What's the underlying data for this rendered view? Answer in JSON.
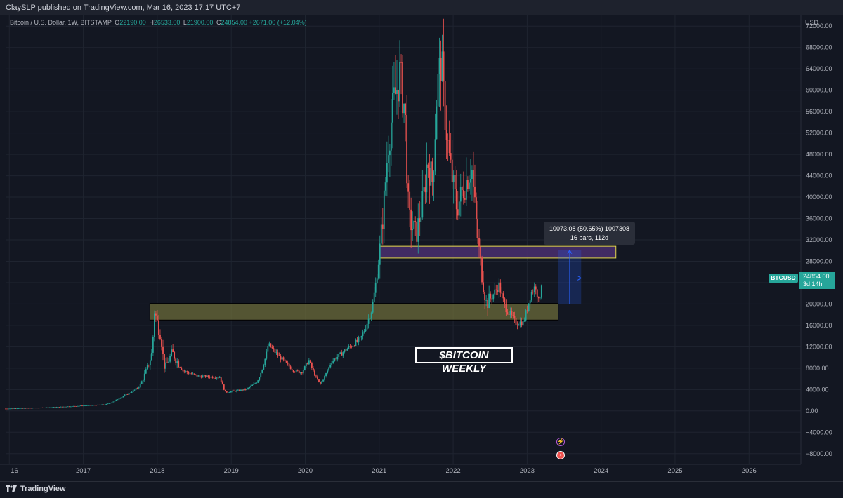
{
  "header": {
    "publish_text": "ClaySLP published on TradingView.com, Mar 16, 2023 17:17 UTC+7"
  },
  "legend": {
    "symbol": "Bitcoin / U.S. Dollar, 1W, BITSTAMP",
    "open_key": "O",
    "open": "22190.00",
    "high_key": "H",
    "high": "26533.00",
    "low_key": "L",
    "low": "21900.00",
    "close_key": "C",
    "close": "24854.00",
    "change": "+2671.00 (+12.04%)"
  },
  "currency_label": "USD",
  "annotation_text": "$BITCOIN WEEKLY",
  "measure": {
    "line1": "10073.08 (50.65%) 1007308",
    "line2": "16 bars, 112d"
  },
  "price_badge": {
    "ticker": "BTCUSD",
    "price": "24854.00",
    "countdown": "3d 14h"
  },
  "footer": {
    "brand": "TradingView"
  },
  "colors": {
    "background": "#131722",
    "up": "#26a69a",
    "down": "#ef5350",
    "grid": "#1f2430",
    "zone_low": "#6b6b3a",
    "zone_high": "#4a2f6e",
    "measure": "#2962ff",
    "axis_text": "#b2b5be"
  },
  "chart_data": {
    "type": "candlestick",
    "symbol": "BTCUSD",
    "interval": "1W",
    "y_ticks": [
      72000,
      68000,
      64000,
      60000,
      56000,
      52000,
      48000,
      44000,
      40000,
      36000,
      32000,
      28000,
      24000,
      20000,
      16000,
      12000,
      8000,
      4000,
      0,
      -4000,
      -8000
    ],
    "y_tick_labels": [
      "72000.00",
      "68000.00",
      "64000.00",
      "60000.00",
      "56000.00",
      "52000.00",
      "48000.00",
      "44000.00",
      "40000.00",
      "36000.00",
      "32000.00",
      "28000.00",
      "24000.00",
      "20000.00",
      "16000.00",
      "12000.00",
      "8000.00",
      "4000.00",
      "0.00",
      "−4000.00",
      "−8000.00"
    ],
    "x_tick_labels": [
      "16",
      "2017",
      "2018",
      "2019",
      "2020",
      "2021",
      "2022",
      "2023",
      "2024",
      "2025",
      "2026"
    ],
    "x_tick_years": [
      2016,
      2017,
      2018,
      2019,
      2020,
      2021,
      2022,
      2023,
      2024,
      2025,
      2026
    ],
    "ylim": [
      -10000,
      74000
    ],
    "xlim": [
      2015.95,
      2026.7
    ],
    "price_path": [
      [
        2015.95,
        430
      ],
      [
        2016.5,
        650
      ],
      [
        2016.95,
        950
      ],
      [
        2017.3,
        1200
      ],
      [
        2017.5,
        2500
      ],
      [
        2017.75,
        4500
      ],
      [
        2017.85,
        7500
      ],
      [
        2017.93,
        11000
      ],
      [
        2017.96,
        19000
      ],
      [
        2018.05,
        14000
      ],
      [
        2018.1,
        8000
      ],
      [
        2018.2,
        11000
      ],
      [
        2018.35,
        7500
      ],
      [
        2018.55,
        6500
      ],
      [
        2018.85,
        6300
      ],
      [
        2018.92,
        3500
      ],
      [
        2019.2,
        4000
      ],
      [
        2019.35,
        5500
      ],
      [
        2019.48,
        11000
      ],
      [
        2019.5,
        12500
      ],
      [
        2019.7,
        9500
      ],
      [
        2019.85,
        7500
      ],
      [
        2019.95,
        7200
      ],
      [
        2020.05,
        9500
      ],
      [
        2020.2,
        5000
      ],
      [
        2020.35,
        9200
      ],
      [
        2020.55,
        11500
      ],
      [
        2020.75,
        13500
      ],
      [
        2020.9,
        19000
      ],
      [
        2021.0,
        29000
      ],
      [
        2021.07,
        40000
      ],
      [
        2021.12,
        50000
      ],
      [
        2021.2,
        58000
      ],
      [
        2021.28,
        63000
      ],
      [
        2021.35,
        56000
      ],
      [
        2021.4,
        36000
      ],
      [
        2021.5,
        33000
      ],
      [
        2021.6,
        40000
      ],
      [
        2021.65,
        47000
      ],
      [
        2021.72,
        43000
      ],
      [
        2021.78,
        60000
      ],
      [
        2021.84,
        66000
      ],
      [
        2021.88,
        57000
      ],
      [
        2021.95,
        47000
      ],
      [
        2022.05,
        38000
      ],
      [
        2022.15,
        42000
      ],
      [
        2022.25,
        46000
      ],
      [
        2022.35,
        30000
      ],
      [
        2022.45,
        20000
      ],
      [
        2022.55,
        22000
      ],
      [
        2022.62,
        23500
      ],
      [
        2022.7,
        19500
      ],
      [
        2022.85,
        16500
      ],
      [
        2022.95,
        16600
      ],
      [
        2023.05,
        22000
      ],
      [
        2023.12,
        23500
      ],
      [
        2023.16,
        20000
      ],
      [
        2023.2,
        24854
      ]
    ],
    "zones": [
      {
        "name": "support",
        "y_bottom": 17000,
        "y_top": 20100
      },
      {
        "name": "resistance",
        "y_bottom": 28600,
        "y_top": 30800
      }
    ],
    "last_price": 24854,
    "measure_range": {
      "from": 20000,
      "to": 30073
    }
  }
}
